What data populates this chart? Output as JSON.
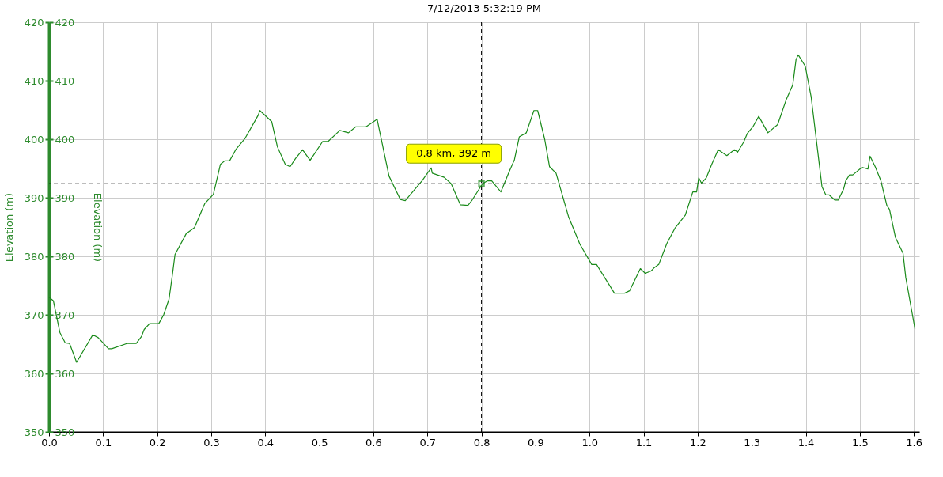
{
  "chart_data": {
    "type": "line",
    "title": "7/12/2013 5:32:19 PM",
    "ylabel": "Elevation (m)",
    "y2label": "Elevation (m)",
    "x": [
      0.0,
      0.008,
      0.02,
      0.03,
      0.038,
      0.051,
      0.081,
      0.091,
      0.11,
      0.116,
      0.144,
      0.161,
      0.171,
      0.176,
      0.186,
      0.203,
      0.212,
      0.222,
      0.228,
      0.233,
      0.254,
      0.269,
      0.288,
      0.304,
      0.317,
      0.325,
      0.334,
      0.346,
      0.363,
      0.387,
      0.39,
      0.412,
      0.4225,
      0.437,
      0.446,
      0.456,
      0.469,
      0.483,
      0.506,
      0.516,
      0.538,
      0.554,
      0.567,
      0.586,
      0.607,
      0.629,
      0.65,
      0.659,
      0.69,
      0.707,
      0.709,
      0.731,
      0.744,
      0.761,
      0.775,
      0.782,
      0.802,
      0.811,
      0.819,
      0.836,
      0.851,
      0.861,
      0.87,
      0.883,
      0.897,
      0.904,
      0.917,
      0.926,
      0.938,
      0.961,
      0.982,
      1.004,
      1.013,
      1.046,
      1.065,
      1.074,
      1.094,
      1.103,
      1.114,
      1.119,
      1.128,
      1.143,
      1.158,
      1.177,
      1.191,
      1.198,
      1.202,
      1.207,
      1.216,
      1.226,
      1.238,
      1.254,
      1.268,
      1.274,
      1.285,
      1.292,
      1.302,
      1.313,
      1.33,
      1.348,
      1.364,
      1.376,
      1.382,
      1.386,
      1.399,
      1.41,
      1.43,
      1.437,
      1.443,
      1.454,
      1.46,
      1.47,
      1.474,
      1.481,
      1.487,
      1.504,
      1.515,
      1.519,
      1.529,
      1.539,
      1.55,
      1.555,
      1.566,
      1.58,
      1.585,
      1.602
    ],
    "series": [
      {
        "color": "#1a8a1a",
        "values": [
          373.0,
          372.4,
          367.0,
          365.2,
          365.1,
          361.9,
          366.6,
          366.1,
          364.2,
          364.2,
          365.1,
          365.1,
          366.3,
          367.5,
          368.5,
          368.5,
          370.0,
          372.7,
          376.7,
          380.3,
          383.9,
          384.9,
          389.0,
          390.6,
          395.7,
          396.3,
          396.3,
          398.3,
          400.2,
          404.1,
          404.9,
          403.0,
          398.7,
          395.7,
          395.3,
          396.7,
          398.2,
          396.4,
          399.6,
          399.6,
          401.5,
          401.1,
          402.1,
          402.1,
          403.4,
          393.7,
          389.7,
          389.5,
          392.9,
          395.1,
          394.2,
          393.5,
          392.4,
          388.8,
          388.7,
          389.5,
          392.4,
          392.9,
          392.9,
          391.0,
          394.4,
          396.5,
          400.4,
          401.1,
          404.9,
          404.9,
          400.0,
          395.3,
          394.2,
          386.8,
          382.1,
          378.6,
          378.6,
          373.7,
          373.7,
          374.1,
          377.9,
          377.1,
          377.5,
          378.0,
          378.6,
          382.2,
          384.8,
          387.0,
          391.0,
          391.0,
          393.4,
          392.5,
          393.4,
          395.7,
          398.2,
          397.2,
          398.2,
          397.8,
          399.5,
          401.0,
          402.1,
          403.9,
          401.1,
          402.5,
          406.8,
          409.3,
          413.6,
          414.4,
          412.5,
          407.2,
          391.9,
          390.5,
          390.5,
          389.6,
          389.6,
          391.5,
          392.9,
          393.9,
          393.9,
          395.2,
          394.9,
          397.1,
          395.2,
          392.9,
          388.7,
          388.0,
          383.2,
          380.5,
          376.4,
          367.6
        ]
      }
    ],
    "xlim": [
      0,
      1.61
    ],
    "xticks": [
      {
        "value": 0,
        "label": "0.0"
      },
      0.1,
      0.2,
      0.3,
      0.4,
      0.5,
      0.6,
      0.7,
      0.8,
      0.9,
      {
        "value": 1,
        "label": "1.0"
      },
      1.1,
      1.2,
      1.3,
      1.4,
      1.5,
      1.6
    ],
    "ylim": [
      350,
      420
    ],
    "yticks": [
      350,
      360,
      370,
      380,
      390,
      400,
      410,
      420
    ],
    "y2lim": [
      350,
      420
    ],
    "y2ticks": [
      350,
      360,
      370,
      380,
      390,
      400,
      410,
      420
    ],
    "ref_lines": [
      {
        "axis": "x",
        "value": 0.8,
        "color": "#000000",
        "line_style": "dashed"
      },
      {
        "axis": "y",
        "value": 392.4,
        "color": "#000000",
        "line_style": "dashed"
      }
    ],
    "annotations": [
      {
        "text": "0.8 km, 392 m",
        "x": 0.8,
        "y": 392.4
      }
    ],
    "grid": true,
    "marker": "none",
    "line_style": "solid"
  }
}
